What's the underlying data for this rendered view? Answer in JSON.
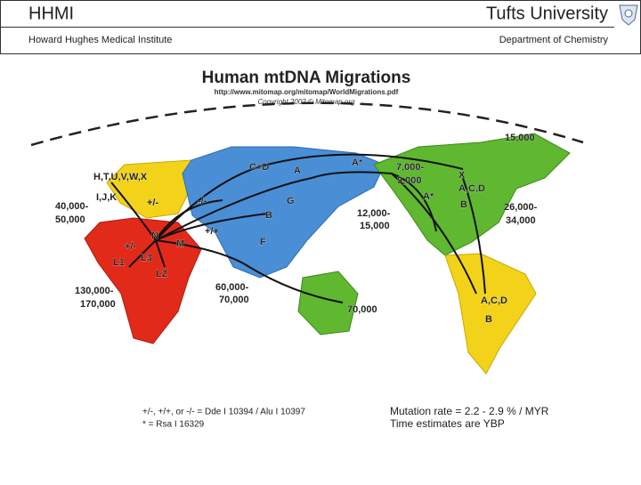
{
  "header": {
    "left_title": "HHMI",
    "right_title": "Tufts University",
    "left_subtitle": "Howard Hughes Medical Institute",
    "right_subtitle": "Department of Chemistry"
  },
  "map": {
    "title": "Human mtDNA Migrations",
    "url": "http://www.mitomap.org/mitomap/WorldMigrations.pdf",
    "copyright": "Copyright 2002 © Mitomap.org",
    "labels": [
      "H,T,U,V,W,X",
      "I,J,K",
      "+/-",
      "-/-",
      "C+D",
      "A",
      "A*",
      "7,000-",
      "9,000",
      "15,000",
      "X",
      "A,C,D",
      "A*",
      "B",
      "G",
      "B",
      "12,000-",
      "15,000",
      "26,000-",
      "34,000",
      "40,000-",
      "50,000",
      "+/+",
      "N",
      "M",
      "F",
      "+/-",
      "L1",
      "L3",
      "L2",
      "130,000-",
      "170,000",
      "60,000-",
      "70,000",
      "70,000",
      "A,C,D",
      "B"
    ],
    "footnotes": [
      "+/-, +/+, or -/- = Dde I 10394 / Alu I 10397",
      "* = Rsa I 16329",
      "Mutation rate = 2.2 - 2.9 % / MYR",
      "Time estimates are YBP"
    ]
  }
}
